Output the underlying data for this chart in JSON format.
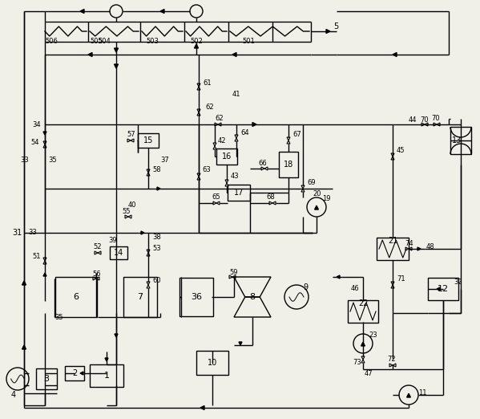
{
  "bg_color": "#f0efe8",
  "lw": 1.0,
  "fig_width": 5.99,
  "fig_height": 5.22,
  "dpi": 100
}
